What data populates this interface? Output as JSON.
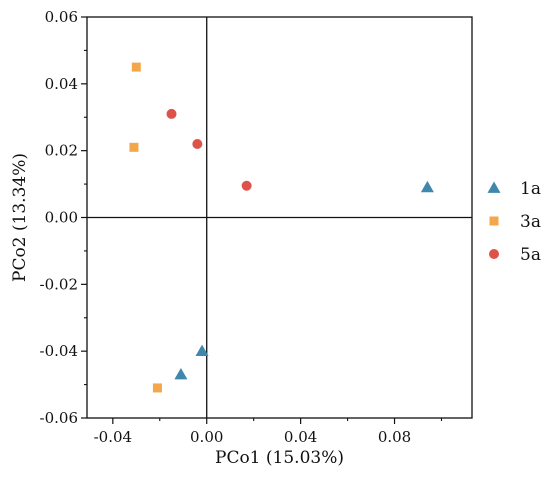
{
  "chart_data": {
    "type": "scatter",
    "xlabel": "PCo1 (15.03%)",
    "ylabel": "PCo2 (13.34%)",
    "xlim": [
      -0.051,
      0.113
    ],
    "ylim": [
      -0.06,
      0.06
    ],
    "x_ticks": [
      -0.04,
      0.0,
      0.04,
      0.08
    ],
    "x_tick_labels": [
      "-0.04",
      "0.00",
      "0.04",
      "0.08"
    ],
    "y_ticks": [
      0.06,
      0.04,
      0.02,
      0.0,
      -0.02,
      -0.04,
      -0.06
    ],
    "y_tick_labels": [
      "0.06",
      "0.04",
      "0.02",
      "0.00",
      "-0.02",
      "-0.04",
      "-0.06"
    ],
    "zero_lines": true,
    "grid": false,
    "legend_position": "right",
    "series": [
      {
        "name": "1a",
        "marker": "triangle",
        "color": "#3f87ac",
        "points": [
          [
            0.094,
            0.009
          ],
          [
            -0.002,
            -0.04
          ],
          [
            -0.011,
            -0.047
          ]
        ]
      },
      {
        "name": "3a",
        "marker": "square",
        "color": "#f4a64a",
        "points": [
          [
            -0.03,
            0.045
          ],
          [
            -0.031,
            0.021
          ],
          [
            -0.021,
            -0.051
          ]
        ]
      },
      {
        "name": "5a",
        "marker": "circle",
        "color": "#dd5349",
        "points": [
          [
            -0.015,
            0.031
          ],
          [
            -0.004,
            0.022
          ],
          [
            0.017,
            0.0095
          ]
        ]
      }
    ]
  }
}
